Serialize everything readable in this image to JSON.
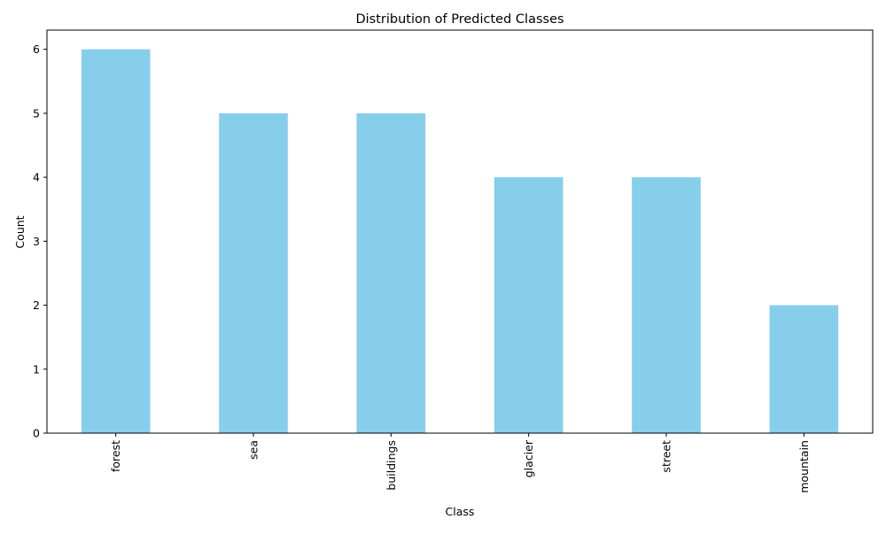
{
  "chart_data": {
    "type": "bar",
    "title": "Distribution of Predicted Classes",
    "xlabel": "Class",
    "ylabel": "Count",
    "categories": [
      "forest",
      "sea",
      "buildings",
      "glacier",
      "street",
      "mountain"
    ],
    "values": [
      6,
      5,
      5,
      4,
      4,
      2
    ],
    "ylim": [
      0,
      6.3
    ],
    "yticks": [
      0,
      1,
      2,
      3,
      4,
      5,
      6
    ],
    "bar_color": "#87CEEB",
    "grid": false,
    "legend": "none",
    "xtick_rotation": "vertical"
  }
}
